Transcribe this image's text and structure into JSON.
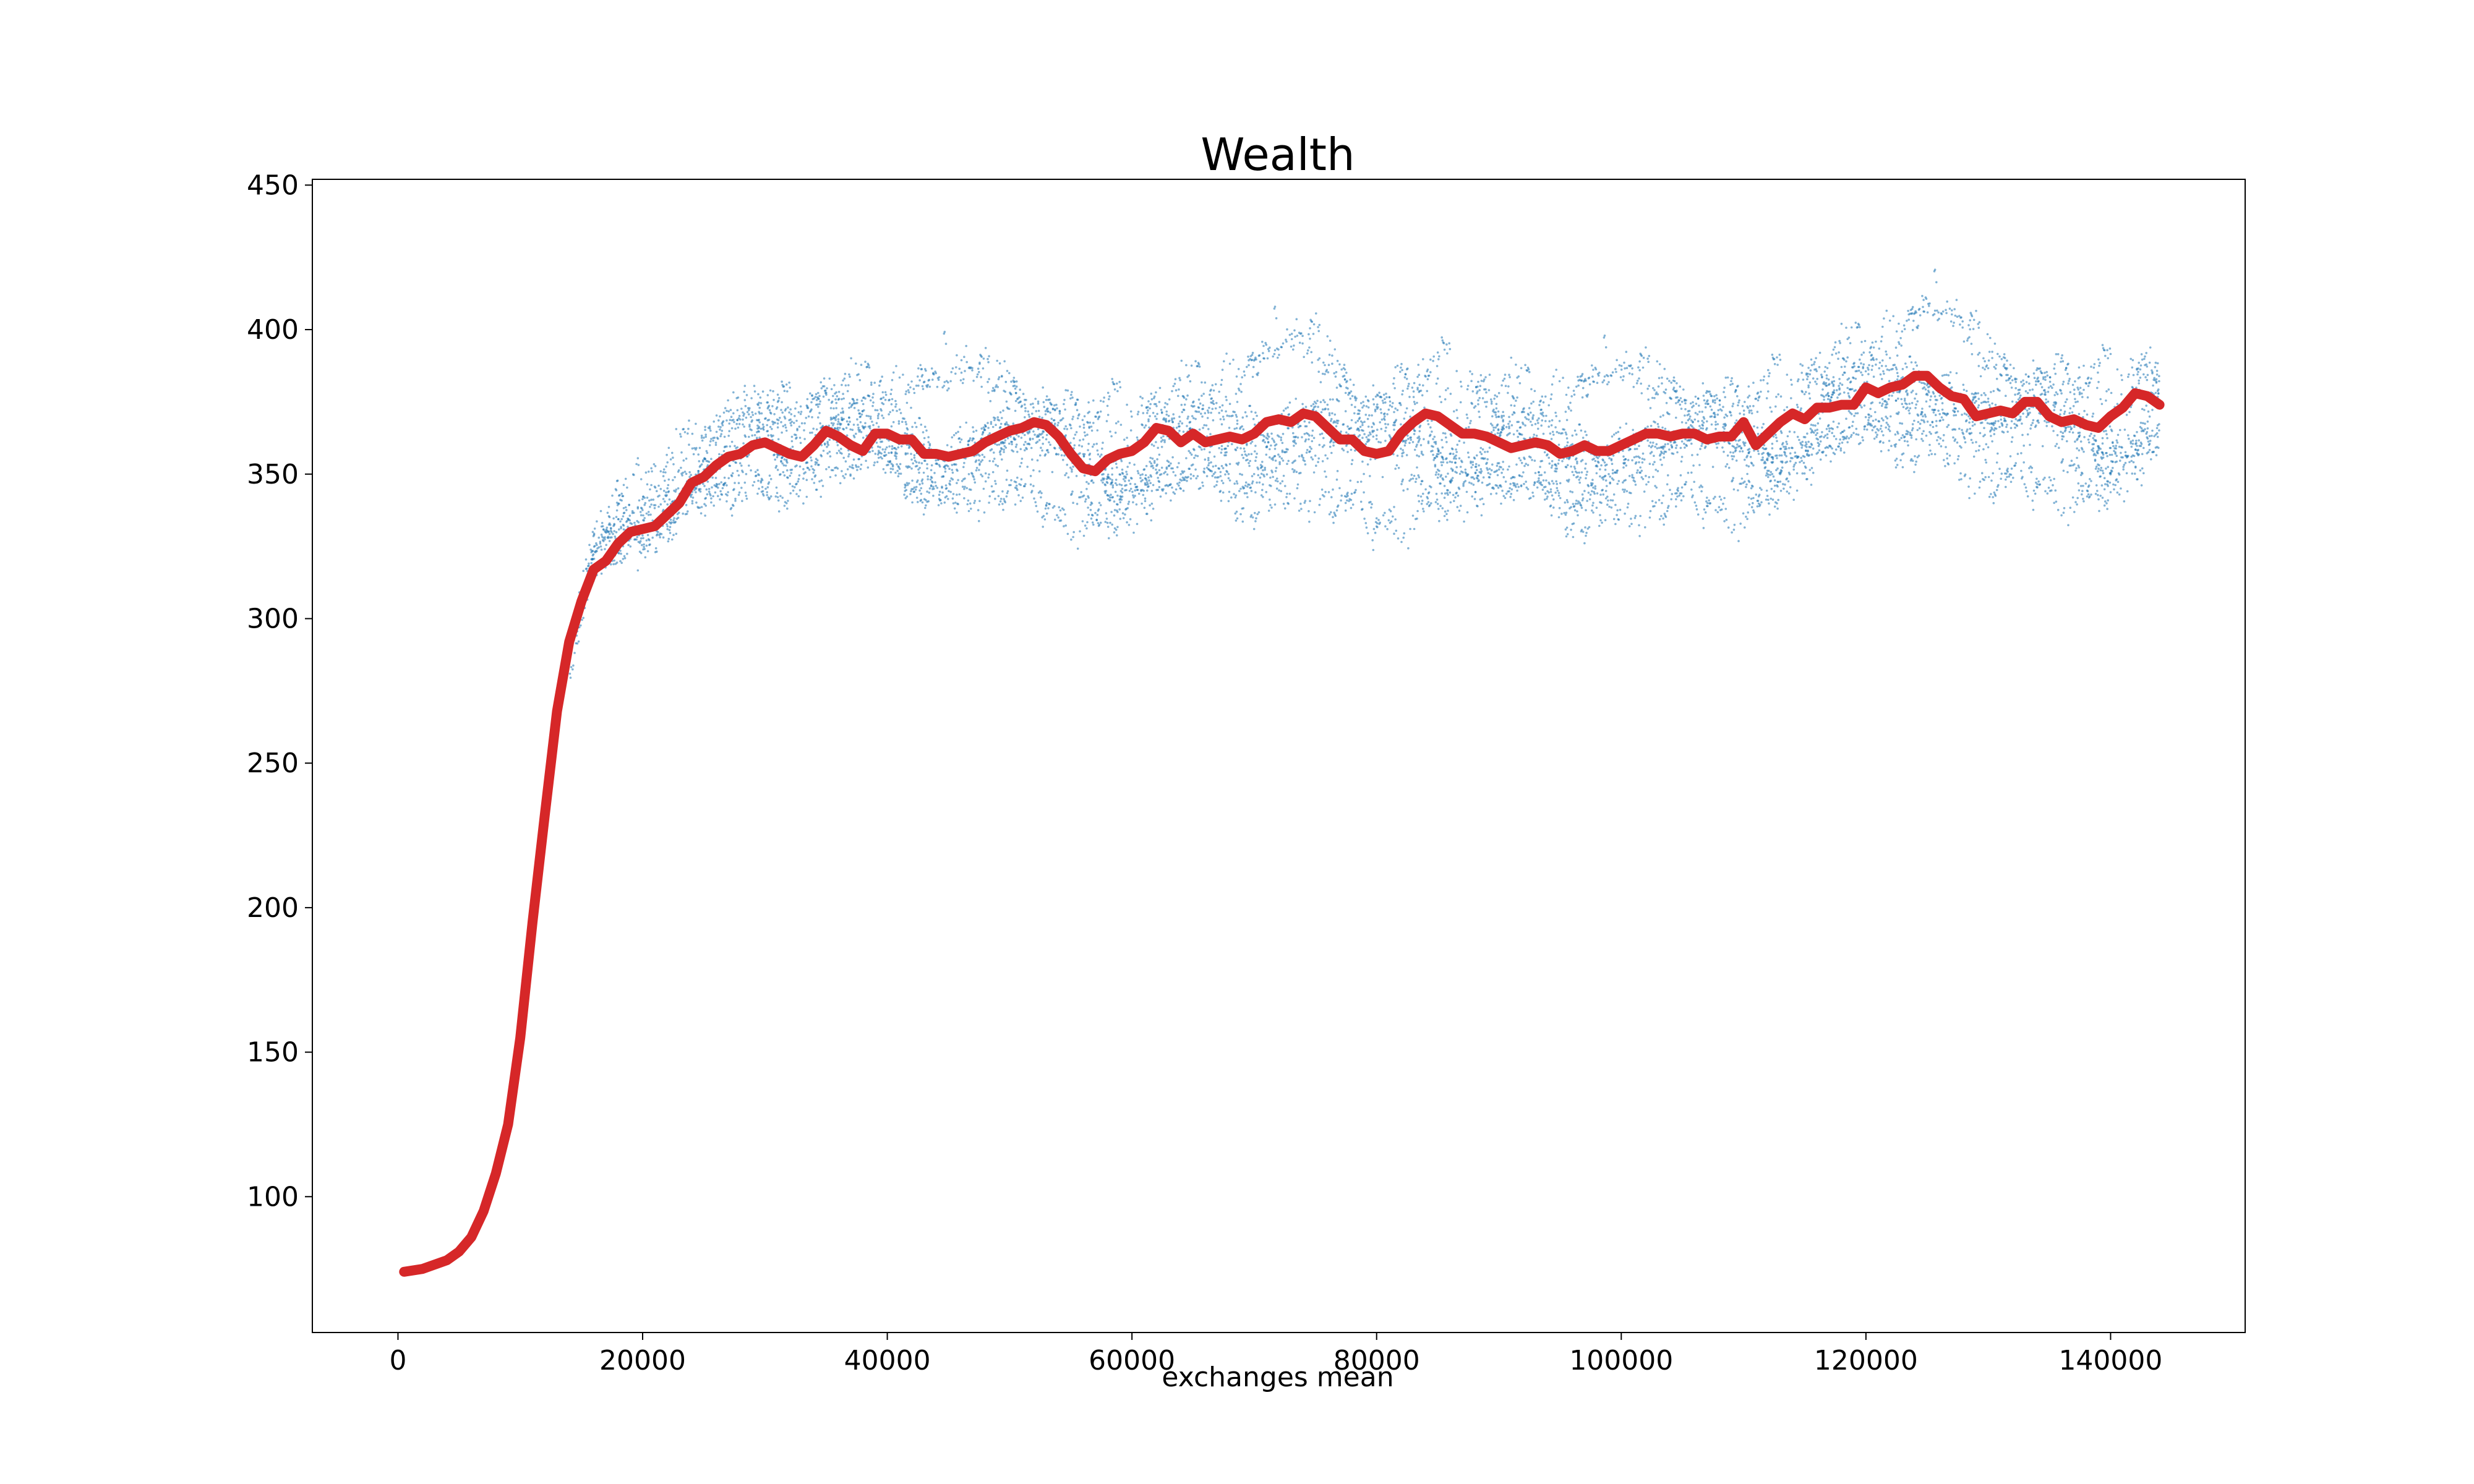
{
  "chart_data": {
    "type": "line",
    "title": "Wealth",
    "xlabel": "exchanges mean",
    "ylabel": "",
    "xlim": [
      -7000,
      151000
    ],
    "ylim": [
      53,
      452
    ],
    "x_ticks": [
      0,
      20000,
      40000,
      60000,
      80000,
      100000,
      120000,
      140000
    ],
    "x_tick_labels": [
      "0",
      "20000",
      "40000",
      "60000",
      "80000",
      "100000",
      "120000",
      "140000"
    ],
    "y_ticks": [
      100,
      150,
      200,
      250,
      300,
      350,
      400,
      450
    ],
    "y_tick_labels": [
      "100",
      "150",
      "200",
      "250",
      "300",
      "350",
      "400",
      "450"
    ],
    "grid": false,
    "series": [
      {
        "kind": "line",
        "color": "#d62728",
        "points": [
          [
            500,
            74
          ],
          [
            2000,
            75
          ],
          [
            4000,
            78
          ],
          [
            5000,
            81
          ],
          [
            6000,
            86
          ],
          [
            7000,
            95
          ],
          [
            8000,
            108
          ],
          [
            9000,
            125
          ],
          [
            10000,
            155
          ],
          [
            11000,
            195
          ],
          [
            12000,
            232
          ],
          [
            13000,
            268
          ],
          [
            14000,
            292
          ],
          [
            15000,
            306
          ],
          [
            16000,
            317
          ],
          [
            17000,
            320
          ],
          [
            18000,
            326
          ],
          [
            19000,
            330
          ],
          [
            20000,
            331
          ],
          [
            21000,
            332
          ],
          [
            22000,
            336
          ],
          [
            23000,
            340
          ],
          [
            24000,
            347
          ],
          [
            25000,
            349
          ],
          [
            26000,
            353
          ],
          [
            27000,
            356
          ],
          [
            28000,
            357
          ],
          [
            29000,
            360
          ],
          [
            30000,
            361
          ],
          [
            31000,
            359
          ],
          [
            32000,
            357
          ],
          [
            33000,
            356
          ],
          [
            34000,
            360
          ],
          [
            35000,
            365
          ],
          [
            36000,
            363
          ],
          [
            37000,
            360
          ],
          [
            38000,
            358
          ],
          [
            39000,
            364
          ],
          [
            40000,
            364
          ],
          [
            41000,
            362
          ],
          [
            42000,
            362
          ],
          [
            43000,
            357
          ],
          [
            44000,
            357
          ],
          [
            45000,
            356
          ],
          [
            46000,
            357
          ],
          [
            47000,
            358
          ],
          [
            48000,
            361
          ],
          [
            49000,
            363
          ],
          [
            50000,
            365
          ],
          [
            51000,
            366
          ],
          [
            52000,
            368
          ],
          [
            53000,
            367
          ],
          [
            54000,
            363
          ],
          [
            55000,
            357
          ],
          [
            56000,
            352
          ],
          [
            57000,
            351
          ],
          [
            58000,
            355
          ],
          [
            59000,
            357
          ],
          [
            60000,
            358
          ],
          [
            61000,
            361
          ],
          [
            62000,
            366
          ],
          [
            63000,
            365
          ],
          [
            64000,
            361
          ],
          [
            65000,
            364
          ],
          [
            66000,
            361
          ],
          [
            67000,
            362
          ],
          [
            68000,
            363
          ],
          [
            69000,
            362
          ],
          [
            70000,
            364
          ],
          [
            71000,
            368
          ],
          [
            72000,
            369
          ],
          [
            73000,
            368
          ],
          [
            74000,
            371
          ],
          [
            75000,
            370
          ],
          [
            76000,
            366
          ],
          [
            77000,
            362
          ],
          [
            78000,
            362
          ],
          [
            79000,
            358
          ],
          [
            80000,
            357
          ],
          [
            81000,
            358
          ],
          [
            82000,
            364
          ],
          [
            83000,
            368
          ],
          [
            84000,
            371
          ],
          [
            85000,
            370
          ],
          [
            86000,
            367
          ],
          [
            87000,
            364
          ],
          [
            88000,
            364
          ],
          [
            89000,
            363
          ],
          [
            90000,
            361
          ],
          [
            91000,
            359
          ],
          [
            92000,
            360
          ],
          [
            93000,
            361
          ],
          [
            94000,
            360
          ],
          [
            95000,
            357
          ],
          [
            96000,
            358
          ],
          [
            97000,
            360
          ],
          [
            98000,
            358
          ],
          [
            99000,
            358
          ],
          [
            100000,
            360
          ],
          [
            101000,
            362
          ],
          [
            102000,
            364
          ],
          [
            103000,
            364
          ],
          [
            104000,
            363
          ],
          [
            105000,
            364
          ],
          [
            106000,
            364
          ],
          [
            107000,
            362
          ],
          [
            108000,
            363
          ],
          [
            109000,
            363
          ],
          [
            110000,
            368
          ],
          [
            111000,
            360
          ],
          [
            112000,
            364
          ],
          [
            113000,
            368
          ],
          [
            114000,
            371
          ],
          [
            115000,
            369
          ],
          [
            116000,
            373
          ],
          [
            117000,
            373
          ],
          [
            118000,
            374
          ],
          [
            119000,
            374
          ],
          [
            120000,
            380
          ],
          [
            121000,
            378
          ],
          [
            122000,
            380
          ],
          [
            123000,
            381
          ],
          [
            124000,
            384
          ],
          [
            125000,
            384
          ],
          [
            126000,
            380
          ],
          [
            127000,
            377
          ],
          [
            128000,
            376
          ],
          [
            129000,
            370
          ],
          [
            130000,
            371
          ],
          [
            131000,
            372
          ],
          [
            132000,
            371
          ],
          [
            133000,
            375
          ],
          [
            134000,
            375
          ],
          [
            135000,
            370
          ],
          [
            136000,
            368
          ],
          [
            137000,
            369
          ],
          [
            138000,
            367
          ],
          [
            139000,
            366
          ],
          [
            140000,
            370
          ],
          [
            141000,
            373
          ],
          [
            142000,
            378
          ],
          [
            143000,
            377
          ],
          [
            144000,
            374
          ]
        ]
      },
      {
        "kind": "scatter-band",
        "color": "#1f77b4",
        "description_points": [
          [
            14000,
            285
          ],
          [
            16000,
            320
          ],
          [
            18000,
            330
          ],
          [
            20000,
            332
          ],
          [
            22000,
            336
          ],
          [
            24000,
            345
          ],
          [
            26000,
            352
          ],
          [
            28000,
            358
          ],
          [
            30000,
            360
          ],
          [
            35000,
            362
          ],
          [
            40000,
            362
          ],
          [
            45000,
            358
          ],
          [
            50000,
            364
          ],
          [
            55000,
            358
          ],
          [
            60000,
            357
          ],
          [
            65000,
            362
          ],
          [
            70000,
            365
          ],
          [
            75000,
            370
          ],
          [
            80000,
            360
          ],
          [
            84000,
            370
          ],
          [
            90000,
            361
          ],
          [
            95000,
            358
          ],
          [
            100000,
            360
          ],
          [
            105000,
            364
          ],
          [
            110000,
            363
          ],
          [
            115000,
            370
          ],
          [
            120000,
            378
          ],
          [
            125000,
            384
          ],
          [
            130000,
            371
          ],
          [
            135000,
            371
          ],
          [
            140000,
            368
          ],
          [
            144000,
            374
          ]
        ],
        "spread": [
          [
            14000,
            8
          ],
          [
            16000,
            12
          ],
          [
            18000,
            16
          ],
          [
            20000,
            20
          ],
          [
            24000,
            25
          ],
          [
            28000,
            32
          ],
          [
            40000,
            38
          ],
          [
            60000,
            38
          ],
          [
            84000,
            45
          ],
          [
            100000,
            38
          ],
          [
            120000,
            38
          ],
          [
            140000,
            40
          ]
        ]
      }
    ]
  }
}
